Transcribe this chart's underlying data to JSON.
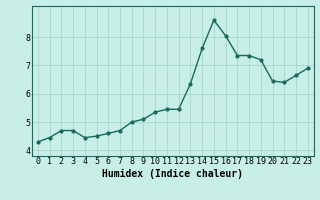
{
  "x": [
    0,
    1,
    2,
    3,
    4,
    5,
    6,
    7,
    8,
    9,
    10,
    11,
    12,
    13,
    14,
    15,
    16,
    17,
    18,
    19,
    20,
    21,
    22,
    23
  ],
  "y": [
    4.3,
    4.45,
    4.7,
    4.7,
    4.45,
    4.5,
    4.6,
    4.7,
    5.0,
    5.1,
    5.35,
    5.45,
    5.45,
    6.35,
    7.6,
    8.6,
    8.05,
    7.35,
    7.35,
    7.2,
    6.45,
    6.4,
    6.65,
    6.9
  ],
  "line_color": "#1a6b5a",
  "marker": "o",
  "marker_size": 2.0,
  "bg_color": "#c8eee8",
  "grid_color": "#aad4cc",
  "xlabel": "Humidex (Indice chaleur)",
  "ylim": [
    3.8,
    9.1
  ],
  "xlim": [
    -0.5,
    23.5
  ],
  "yticks": [
    4,
    5,
    6,
    7,
    8
  ],
  "xticks": [
    0,
    1,
    2,
    3,
    4,
    5,
    6,
    7,
    8,
    9,
    10,
    11,
    12,
    13,
    14,
    15,
    16,
    17,
    18,
    19,
    20,
    21,
    22,
    23
  ],
  "xlabel_fontsize": 7,
  "tick_fontsize": 6,
  "line_width": 1.0,
  "spine_color": "#1a6b5a"
}
